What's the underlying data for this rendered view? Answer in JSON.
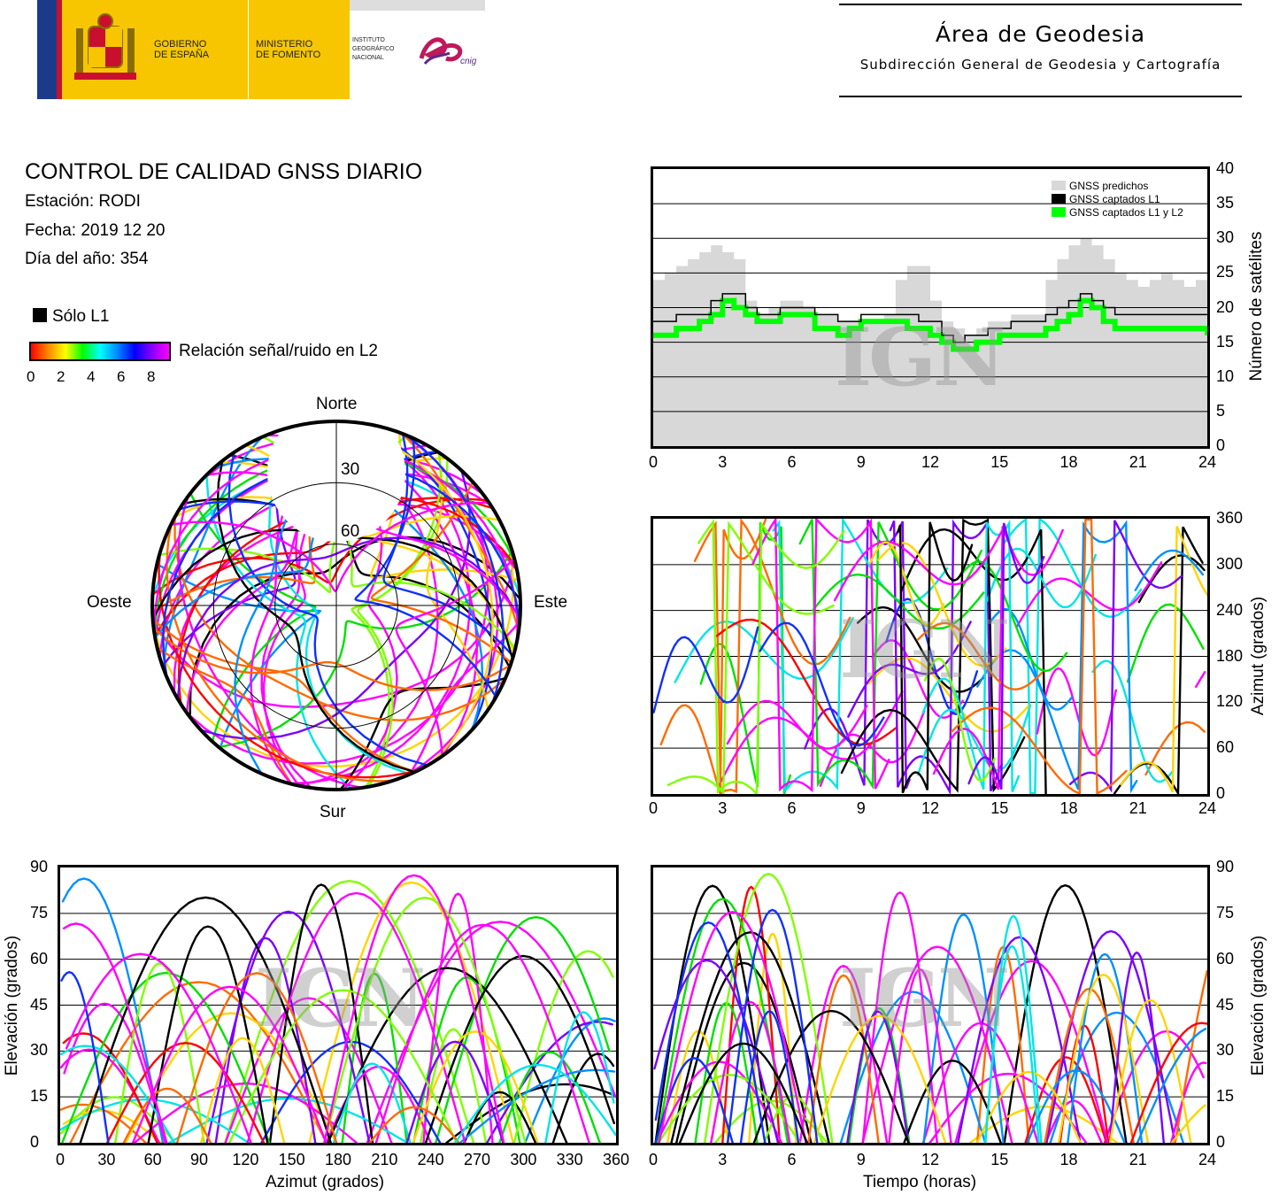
{
  "header": {
    "gov1": "GOBIERNO",
    "gov2": "DE ESPAÑA",
    "min1": "MINISTERIO",
    "min2": "DE FOMENTO",
    "ign1": "INSTITUTO",
    "ign2": "GEOGRÁFICO",
    "ign3": "NACIONAL",
    "cnig": "cnig",
    "area_title": "Área de Geodesia",
    "area_sub": "Subdirección General de Geodesia y Cartografía"
  },
  "info": {
    "title": "CONTROL DE CALIDAD GNSS DIARIO",
    "station": "Estación: RODI",
    "date": "Fecha: 2019 12 20",
    "doy": "Día del año: 354",
    "legend_l1": "Sólo L1",
    "legend_snr": "Relación señal/ruido en L2",
    "snr_ticks": [
      "0",
      "2",
      "4",
      "6",
      "8"
    ]
  },
  "skyplot": {
    "north": "Norte",
    "south": "Sur",
    "east": "Este",
    "west": "Oeste",
    "ring_labels": [
      "30",
      "60"
    ]
  },
  "watermark": "IGN",
  "colors": {
    "predicted": "#d8d8d8",
    "l1": "#000000",
    "l1l2": "#00ff00"
  },
  "chart_data": [
    {
      "type": "area",
      "id": "satellites",
      "ylabel": "Número de satélites",
      "xlim": [
        0,
        24
      ],
      "ylim": [
        0,
        40
      ],
      "xticks": [
        "0",
        "3",
        "6",
        "9",
        "12",
        "15",
        "18",
        "21",
        "24"
      ],
      "yticks": [
        "0",
        "5",
        "10",
        "15",
        "20",
        "25",
        "30",
        "35",
        "40"
      ],
      "legend": [
        "GNSS predichos",
        "GNSS captados L1",
        "GNSS captados L1 y L2"
      ],
      "x": [
        0,
        0.5,
        1,
        1.5,
        2,
        2.5,
        3,
        3.5,
        4,
        4.5,
        5,
        5.5,
        6,
        6.5,
        7,
        7.5,
        8,
        8.5,
        9,
        9.5,
        10,
        10.5,
        11,
        11.5,
        12,
        12.5,
        13,
        13.5,
        14,
        14.5,
        15,
        15.5,
        16,
        16.5,
        17,
        17.5,
        18,
        18.5,
        19,
        19.5,
        20,
        20.5,
        21,
        21.5,
        22,
        22.5,
        23,
        23.5,
        24
      ],
      "series": [
        {
          "name": "GNSS predichos",
          "values": [
            24,
            25,
            26,
            27,
            28,
            29,
            28,
            27,
            21,
            19,
            20,
            21,
            21,
            20,
            19,
            19,
            18,
            18,
            18,
            18,
            19,
            24,
            26,
            26,
            21,
            18,
            17,
            16,
            17,
            18,
            18,
            19,
            19,
            19,
            24,
            27,
            29,
            30,
            29,
            27,
            25,
            24,
            23,
            24,
            25,
            24,
            23,
            24,
            18
          ]
        },
        {
          "name": "GNSS captados L1",
          "values": [
            18,
            18,
            19,
            19,
            19,
            21,
            22,
            22,
            20,
            19,
            19,
            20,
            20,
            20,
            19,
            19,
            18,
            18,
            19,
            19,
            19,
            19,
            19,
            18,
            18,
            16,
            15,
            16,
            16,
            17,
            17,
            18,
            18,
            18,
            19,
            20,
            21,
            22,
            21,
            20,
            19,
            19,
            19,
            19,
            19,
            19,
            19,
            19,
            19
          ]
        },
        {
          "name": "GNSS captados L1 y L2",
          "values": [
            16,
            16,
            17,
            17,
            18,
            19,
            21,
            20,
            19,
            18,
            18,
            19,
            19,
            19,
            17,
            17,
            16,
            17,
            18,
            18,
            18,
            18,
            17,
            17,
            16,
            15,
            14,
            14,
            15,
            15,
            16,
            16,
            16,
            16,
            17,
            18,
            19,
            21,
            20,
            18,
            17,
            17,
            17,
            17,
            17,
            17,
            17,
            17,
            16
          ]
        }
      ]
    },
    {
      "type": "scatter",
      "id": "azimuth-time",
      "ylabel": "Azimut (grados)",
      "xlim": [
        0,
        24
      ],
      "ylim": [
        0,
        360
      ],
      "xticks": [
        "0",
        "3",
        "6",
        "9",
        "12",
        "15",
        "18",
        "21",
        "24"
      ],
      "yticks": [
        "0",
        "60",
        "120",
        "180",
        "240",
        "300",
        "360"
      ]
    },
    {
      "type": "scatter",
      "id": "elevation-azimuth",
      "xlabel": "Azimut (grados)",
      "ylabel": "Elevación (grados)",
      "xlim": [
        0,
        360
      ],
      "ylim": [
        0,
        90
      ],
      "xticks": [
        "0",
        "30",
        "60",
        "90",
        "120",
        "150",
        "180",
        "210",
        "240",
        "270",
        "300",
        "330",
        "360"
      ],
      "yticks": [
        "0",
        "15",
        "30",
        "45",
        "60",
        "75",
        "90"
      ]
    },
    {
      "type": "line",
      "id": "elevation-time",
      "xlabel": "Tiempo (horas)",
      "ylabel": "Elevación (grados)",
      "xlim": [
        0,
        24
      ],
      "ylim": [
        0,
        90
      ],
      "xticks": [
        "0",
        "3",
        "6",
        "9",
        "12",
        "15",
        "18",
        "21",
        "24"
      ],
      "yticks": [
        "0",
        "15",
        "30",
        "45",
        "60",
        "75",
        "90"
      ]
    }
  ]
}
